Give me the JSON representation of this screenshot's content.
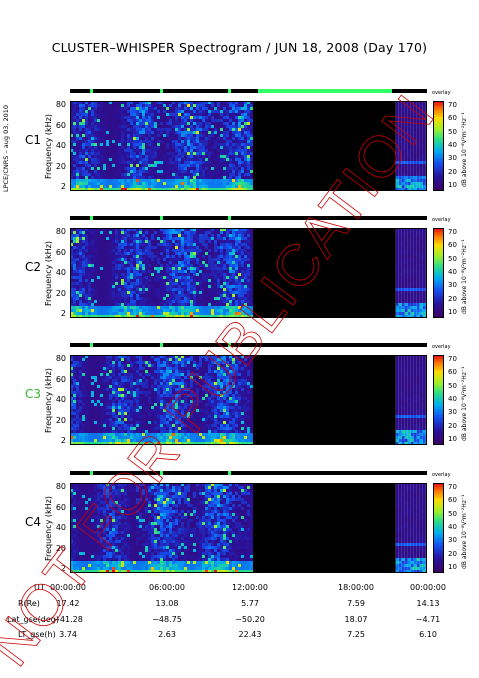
{
  "title": "CLUSTER–WHISPER Spectrogram / JUN 18, 2008 (Day 170)",
  "side_credit": "LPCE/CNRS – aug 03, 2010",
  "watermark": "NOT FOR PUBLICATION",
  "colorbar": {
    "top_label": "overlay",
    "label": "dB above 10⁻⁸V²m⁻²Hz⁻¹",
    "ticks": [
      "70",
      "60",
      "50",
      "40",
      "30",
      "20",
      "10"
    ]
  },
  "panels": [
    {
      "label": "C1",
      "ylabel": "Frequency (kHz)",
      "yticks": [
        "80",
        "60",
        "40",
        "20",
        "2"
      ],
      "label_color": "#000000"
    },
    {
      "label": "C2",
      "ylabel": "Frequency (kHz)",
      "yticks": [
        "80",
        "60",
        "40",
        "20",
        "2"
      ],
      "label_color": "#000000"
    },
    {
      "label": "C3",
      "ylabel": "Frequency (kHz)",
      "yticks": [
        "80",
        "60",
        "40",
        "20",
        "2"
      ],
      "label_color": "#2eb82e"
    },
    {
      "label": "C4",
      "ylabel": "Frequency (kHz)",
      "yticks": [
        "80",
        "60",
        "40",
        "20",
        "2"
      ],
      "label_color": "#000000"
    }
  ],
  "ephemeris": {
    "rows": [
      {
        "label": "UT",
        "values": [
          "00:00:00",
          "06:00:00",
          "12:00:00",
          "18:00:00",
          "00:00:00"
        ]
      },
      {
        "label": "R(Re)",
        "values": [
          "17.42",
          "13.08",
          "5.77",
          "7.59",
          "14.13"
        ]
      },
      {
        "label": "Lat_gse(deg)",
        "values": [
          "−41.28",
          "−48.75",
          "−50.20",
          "18.07",
          "−4.71"
        ]
      },
      {
        "label": "LT_gse(h)",
        "values": [
          "3.74",
          "2.63",
          "22.43",
          "7.25",
          "6.10"
        ]
      }
    ]
  },
  "chart_data": {
    "type": "heatmap",
    "title": "CLUSTER–WHISPER Spectrogram / JUN 18, 2008 (Day 170)",
    "xlabel": "UT",
    "ylabel": "Frequency (kHz)",
    "xlim": [
      "00:00:00",
      "24:00:00"
    ],
    "ylim": [
      2,
      80
    ],
    "zlabel": "dB above 10⁻⁸V²m⁻²Hz⁻¹",
    "zlim": [
      10,
      70
    ],
    "series": [
      {
        "name": "C1",
        "data_gap_hours": [
          [
            12.3,
            21.9
          ]
        ]
      },
      {
        "name": "C2",
        "data_gap_hours": [
          [
            12.3,
            21.9
          ]
        ]
      },
      {
        "name": "C3",
        "data_gap_hours": [
          [
            12.3,
            21.9
          ]
        ]
      },
      {
        "name": "C4",
        "data_gap_hours": [
          [
            12.3,
            21.9
          ]
        ]
      }
    ]
  },
  "colors": {
    "black": "#000000",
    "green": "#33ff66",
    "watermark": "#cc0000"
  }
}
